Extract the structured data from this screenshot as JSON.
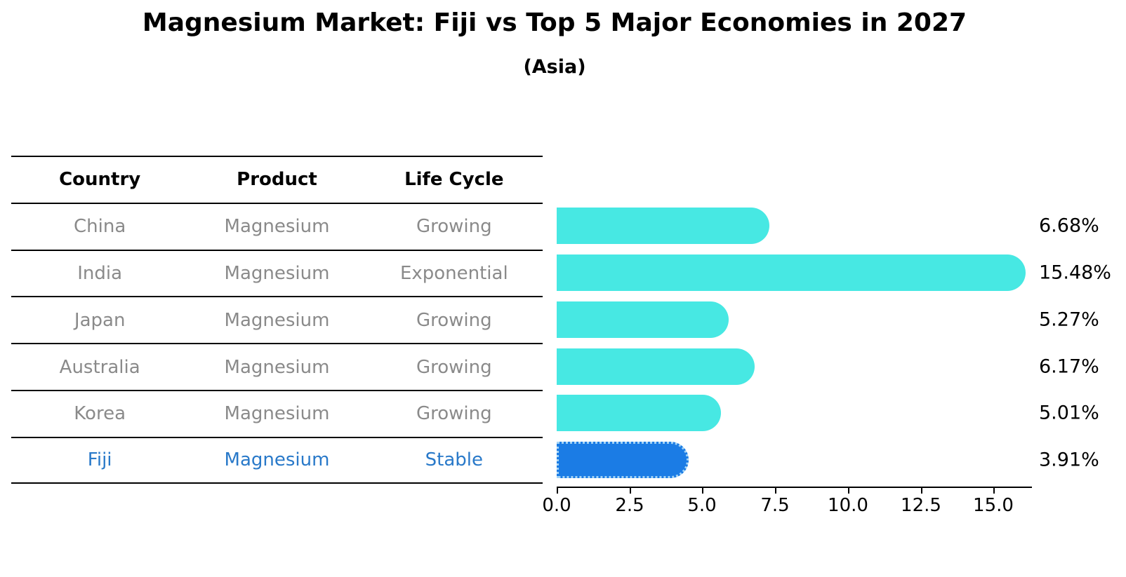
{
  "title": "Magnesium Market: Fiji vs Top 5 Major Economies in 2027",
  "subtitle": "(Asia)",
  "table": {
    "headers": [
      "Country",
      "Product",
      "Life Cycle"
    ],
    "rows": [
      {
        "country": "China",
        "product": "Magnesium",
        "life_cycle": "Growing",
        "highlight": false
      },
      {
        "country": "India",
        "product": "Magnesium",
        "life_cycle": "Exponential",
        "highlight": false
      },
      {
        "country": "Japan",
        "product": "Magnesium",
        "life_cycle": "Growing",
        "highlight": false
      },
      {
        "country": "Australia",
        "product": "Magnesium",
        "life_cycle": "Growing",
        "highlight": false
      },
      {
        "country": "Korea",
        "product": "Magnesium",
        "life_cycle": "Growing",
        "highlight": false
      },
      {
        "country": "Fiji",
        "product": "Magnesium",
        "life_cycle": "Stable",
        "highlight": true
      }
    ]
  },
  "chart_data": {
    "type": "bar",
    "orientation": "horizontal",
    "title": "Magnesium Market: Fiji vs Top 5 Major Economies in 2027",
    "subtitle": "(Asia)",
    "categories": [
      "China",
      "India",
      "Japan",
      "Australia",
      "Korea",
      "Fiji"
    ],
    "values": [
      6.68,
      15.48,
      5.27,
      6.17,
      5.01,
      3.91
    ],
    "value_labels": [
      "6.68%",
      "15.48%",
      "5.27%",
      "6.17%",
      "5.01%",
      "3.91%"
    ],
    "xlabel": "",
    "ylabel": "",
    "xlim": [
      0,
      16.32
    ],
    "x_ticks": [
      0,
      2.5,
      5,
      7.5,
      10,
      12.5,
      15
    ],
    "x_tick_labels": [
      "0.0",
      "2.5",
      "5.0",
      "7.5",
      "10.0",
      "12.5",
      "15.0"
    ],
    "grid": false,
    "legend": false,
    "highlight_index": 5,
    "colors": {
      "default_bar": "#47e8e3",
      "highlight_bar": "#1b7ce5",
      "highlight_border": "#a4d4f6",
      "highlight_text": "#2979c9",
      "table_text": "#8a8a8a",
      "axis_text": "#000000"
    }
  }
}
